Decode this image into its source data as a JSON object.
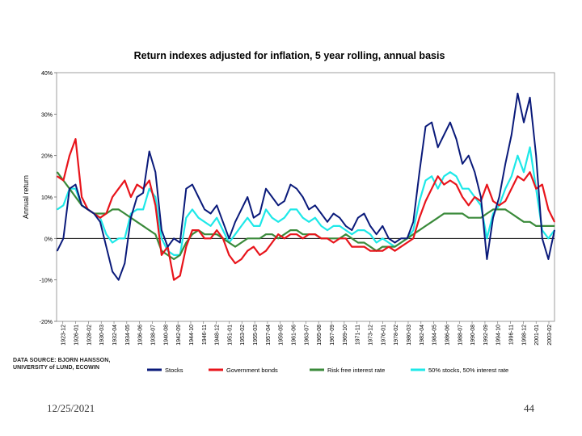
{
  "slide": {
    "date": "12/25/2021",
    "page": "44"
  },
  "source_lines": [
    "DATA SOURCE: BJORN HANSSON,",
    "UNIVERSITY of LUND, ECOWIN"
  ],
  "chart_data": {
    "type": "line",
    "title": "Return indexes adjusted for inflation, 5 year rolling, annual basis",
    "xlabel": "",
    "ylabel": "Annual return",
    "ylim": [
      -0.2,
      0.4
    ],
    "yticks": [
      -0.2,
      -0.1,
      0,
      0.1,
      0.2,
      0.3,
      0.4
    ],
    "ytick_labels": [
      "-20%",
      "-10%",
      "0%",
      "10%",
      "20%",
      "30%",
      "40%"
    ],
    "grid": false,
    "xlim": [
      1922.9,
      2004.0
    ],
    "xtick_labels": [
      "1923-12",
      "1926-01",
      "1928-02",
      "1930-03",
      "1932-04",
      "1934-05",
      "1936-06",
      "1938-07",
      "1940-08",
      "1942-09",
      "1944-10",
      "1946-11",
      "1948-12",
      "1951-01",
      "1953-02",
      "1955-03",
      "1957-04",
      "1959-05",
      "1961-06",
      "1963-07",
      "1965-08",
      "1967-09",
      "1969-10",
      "1971-11",
      "1973-12",
      "1976-01",
      "1978-02",
      "1980-03",
      "1982-04",
      "1984-05",
      "1986-06",
      "1988-07",
      "1990-08",
      "1992-09",
      "1994-10",
      "1996-11",
      "1998-12",
      "2001-01",
      "2003-02"
    ],
    "xtick_values": [
      1923.92,
      1926.0,
      1928.08,
      1930.17,
      1932.25,
      1934.33,
      1936.42,
      1938.5,
      1940.58,
      1942.67,
      1944.75,
      1946.83,
      1948.92,
      1951.0,
      1953.08,
      1955.17,
      1957.25,
      1959.33,
      1961.42,
      1963.5,
      1965.58,
      1967.67,
      1969.75,
      1971.83,
      1973.92,
      1976.0,
      1978.08,
      1980.17,
      1982.25,
      1984.33,
      1986.42,
      1988.5,
      1990.58,
      1992.67,
      1994.75,
      1996.83,
      1998.92,
      2001.0,
      2003.08
    ],
    "x": [
      1923,
      1924,
      1925,
      1926,
      1927,
      1928,
      1929,
      1930,
      1931,
      1932,
      1933,
      1934,
      1935,
      1936,
      1937,
      1938,
      1939,
      1940,
      1941,
      1942,
      1943,
      1944,
      1945,
      1946,
      1947,
      1948,
      1949,
      1950,
      1951,
      1952,
      1953,
      1954,
      1955,
      1956,
      1957,
      1958,
      1959,
      1960,
      1961,
      1962,
      1963,
      1964,
      1965,
      1966,
      1967,
      1968,
      1969,
      1970,
      1971,
      1972,
      1973,
      1974,
      1975,
      1976,
      1977,
      1978,
      1979,
      1980,
      1981,
      1982,
      1983,
      1984,
      1985,
      1986,
      1987,
      1988,
      1989,
      1990,
      1991,
      1992,
      1993,
      1994,
      1995,
      1996,
      1997,
      1998,
      1999,
      2000,
      2001,
      2002,
      2003,
      2004
    ],
    "series": [
      {
        "name": "Stocks",
        "color": "#0a1a7a",
        "values": [
          -0.03,
          0.0,
          0.12,
          0.13,
          0.08,
          0.07,
          0.06,
          0.04,
          -0.02,
          -0.08,
          -0.1,
          -0.06,
          0.05,
          0.1,
          0.11,
          0.21,
          0.16,
          0.02,
          -0.02,
          0.0,
          -0.01,
          0.12,
          0.13,
          0.1,
          0.07,
          0.06,
          0.08,
          0.04,
          0.0,
          0.04,
          0.07,
          0.1,
          0.05,
          0.06,
          0.12,
          0.1,
          0.08,
          0.09,
          0.13,
          0.12,
          0.1,
          0.07,
          0.08,
          0.06,
          0.04,
          0.06,
          0.05,
          0.03,
          0.02,
          0.05,
          0.06,
          0.03,
          0.01,
          0.03,
          0.0,
          -0.01,
          0.0,
          0.0,
          0.04,
          0.16,
          0.27,
          0.28,
          0.22,
          0.25,
          0.28,
          0.24,
          0.18,
          0.2,
          0.16,
          0.1,
          -0.05,
          0.05,
          0.1,
          0.18,
          0.25,
          0.35,
          0.28,
          0.34,
          0.2,
          0.0,
          -0.05,
          0.02
        ]
      },
      {
        "name": "Government bonds",
        "color": "#e8141b",
        "values": [
          0.15,
          0.14,
          0.2,
          0.24,
          0.1,
          0.07,
          0.06,
          0.05,
          0.06,
          0.1,
          0.12,
          0.14,
          0.1,
          0.13,
          0.12,
          0.14,
          0.08,
          -0.04,
          -0.02,
          -0.1,
          -0.09,
          -0.02,
          0.02,
          0.02,
          0.0,
          0.0,
          0.02,
          0.0,
          -0.04,
          -0.06,
          -0.05,
          -0.03,
          -0.02,
          -0.04,
          -0.03,
          -0.01,
          0.01,
          0.0,
          0.01,
          0.01,
          0.0,
          0.01,
          0.01,
          0.0,
          0.0,
          -0.01,
          0.0,
          0.0,
          -0.02,
          -0.02,
          -0.02,
          -0.03,
          -0.03,
          -0.03,
          -0.02,
          -0.03,
          -0.02,
          -0.01,
          0.0,
          0.05,
          0.09,
          0.12,
          0.15,
          0.13,
          0.14,
          0.13,
          0.1,
          0.08,
          0.1,
          0.09,
          0.13,
          0.09,
          0.08,
          0.09,
          0.12,
          0.15,
          0.14,
          0.16,
          0.12,
          0.13,
          0.07,
          0.04
        ]
      },
      {
        "name": "Risk free interest rate",
        "color": "#3a8a3a",
        "values": [
          0.16,
          0.14,
          0.12,
          0.1,
          0.08,
          0.07,
          0.06,
          0.06,
          0.06,
          0.07,
          0.07,
          0.06,
          0.05,
          0.04,
          0.03,
          0.02,
          0.01,
          -0.03,
          -0.04,
          -0.05,
          -0.04,
          -0.01,
          0.01,
          0.02,
          0.01,
          0.01,
          0.01,
          0.0,
          -0.01,
          -0.02,
          -0.01,
          0.0,
          0.0,
          0.0,
          0.01,
          0.01,
          0.0,
          0.01,
          0.02,
          0.02,
          0.01,
          0.01,
          0.01,
          0.0,
          0.0,
          0.0,
          0.0,
          0.01,
          0.0,
          -0.01,
          -0.01,
          -0.02,
          -0.03,
          -0.02,
          -0.02,
          -0.02,
          -0.01,
          0.0,
          0.01,
          0.02,
          0.03,
          0.04,
          0.05,
          0.06,
          0.06,
          0.06,
          0.06,
          0.05,
          0.05,
          0.05,
          0.06,
          0.07,
          0.07,
          0.07,
          0.06,
          0.05,
          0.04,
          0.04,
          0.03,
          0.03,
          0.03,
          0.03
        ]
      },
      {
        "name": "50% stocks, 50% interest rate",
        "color": "#1ee8e8",
        "values": [
          0.07,
          0.08,
          0.12,
          0.12,
          0.08,
          0.07,
          0.06,
          0.05,
          0.01,
          -0.01,
          0.0,
          0.0,
          0.06,
          0.07,
          0.07,
          0.12,
          0.1,
          0.0,
          -0.03,
          -0.04,
          -0.04,
          0.05,
          0.07,
          0.05,
          0.04,
          0.03,
          0.05,
          0.02,
          -0.01,
          0.01,
          0.03,
          0.05,
          0.03,
          0.03,
          0.07,
          0.05,
          0.04,
          0.05,
          0.07,
          0.07,
          0.05,
          0.04,
          0.05,
          0.03,
          0.02,
          0.03,
          0.03,
          0.02,
          0.01,
          0.02,
          0.02,
          0.01,
          -0.01,
          0.0,
          -0.01,
          -0.02,
          -0.01,
          0.0,
          0.02,
          0.09,
          0.14,
          0.15,
          0.12,
          0.15,
          0.16,
          0.15,
          0.12,
          0.12,
          0.1,
          0.08,
          0.0,
          0.06,
          0.08,
          0.12,
          0.15,
          0.2,
          0.16,
          0.22,
          0.12,
          0.02,
          0.0,
          0.02
        ]
      }
    ]
  }
}
